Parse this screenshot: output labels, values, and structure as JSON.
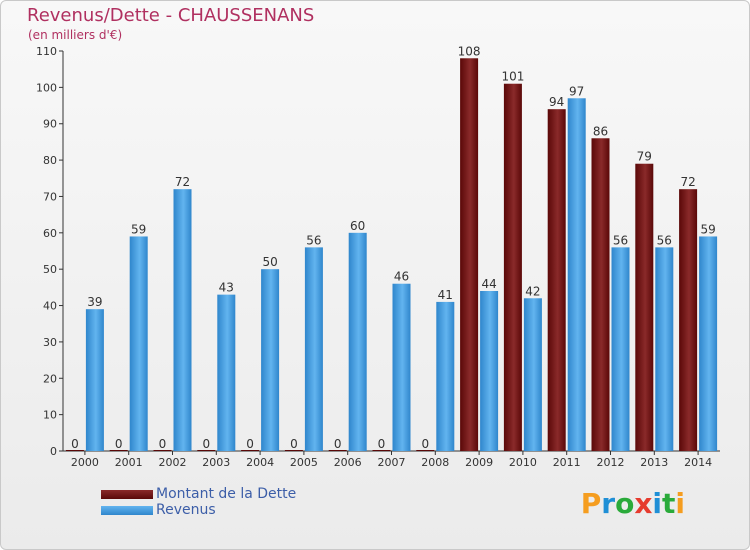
{
  "header": {
    "title": "Revenus/Dette - CHAUSSENANS",
    "subtitle": "(en milliers d'€)"
  },
  "legend": {
    "items": [
      {
        "label": "Montant de la Dette",
        "color": "#6b1010"
      },
      {
        "label": "Revenus",
        "color": "#4aa3e6"
      }
    ]
  },
  "brand": {
    "text": "Proxiti",
    "letters": [
      "P",
      "r",
      "o",
      "x",
      "i",
      "t",
      "i"
    ],
    "colors": [
      "#f59d1f",
      "#1f8fd6",
      "#2aaa3a",
      "#e63b2e",
      "#1f8fd6",
      "#2aaa3a",
      "#f59d1f"
    ]
  },
  "colors": {
    "dette": "#6b1010",
    "revenus": "#4aa3e6",
    "title": "#b03060",
    "axis": "#333333",
    "grid": "#d8d8d8"
  },
  "chart_data": {
    "type": "bar",
    "title": "Revenus/Dette - CHAUSSENANS",
    "subtitle": "(en milliers d'€)",
    "xlabel": "",
    "ylabel": "",
    "ylim": [
      0,
      110
    ],
    "yticks": [
      0,
      10,
      20,
      30,
      40,
      50,
      60,
      70,
      80,
      90,
      100,
      110
    ],
    "grid": false,
    "legend_position": "bottom-left",
    "categories": [
      "2000",
      "2001",
      "2002",
      "2003",
      "2004",
      "2005",
      "2006",
      "2007",
      "2008",
      "2009",
      "2010",
      "2011",
      "2012",
      "2013",
      "2014"
    ],
    "series": [
      {
        "name": "Montant de la Dette",
        "values": [
          0,
          0,
          0,
          0,
          0,
          0,
          0,
          0,
          0,
          108,
          101,
          94,
          86,
          79,
          72
        ]
      },
      {
        "name": "Revenus",
        "values": [
          39,
          59,
          72,
          43,
          50,
          56,
          60,
          46,
          41,
          44,
          42,
          97,
          56,
          56,
          59
        ]
      }
    ]
  }
}
